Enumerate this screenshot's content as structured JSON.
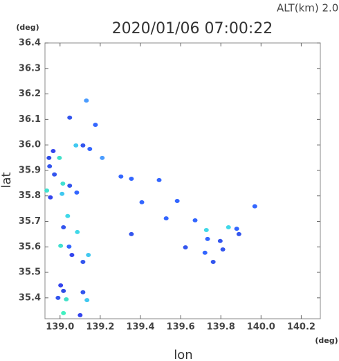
{
  "chart_data": {
    "type": "scatter",
    "header": "ALT(km) 2.0",
    "title": "2020/01/06 07:00:22",
    "y_unit": "(deg)",
    "x_unit": "(deg)",
    "ylabel": "lat",
    "xlabel": "lon",
    "xlim": [
      138.925,
      140.295
    ],
    "ylim": [
      35.318,
      36.4
    ],
    "xticks": [
      {
        "value": 139,
        "label": "139.0"
      },
      139.2,
      139.4,
      139.6,
      139.8,
      {
        "value": 140,
        "label": "140.0"
      },
      140.2
    ],
    "yticks": [
      35.4,
      35.5,
      35.6,
      35.7,
      35.8,
      35.9,
      {
        "value": 36,
        "label": "36.0"
      },
      36.1,
      36.2,
      36.3,
      36.4
    ],
    "x": [
      139.131,
      139.048,
      139.176,
      138.966,
      138.945,
      138.948,
      138.997,
      139.079,
      139.114,
      139.148,
      139.21,
      138.972,
      139.014,
      139.048,
      139.083,
      138.952,
      139.01,
      138.934,
      139.038,
      139.017,
      139.003,
      139.045,
      139.059,
      139.086,
      139.141,
      139.114,
      139.003,
      139.017,
      138.99,
      139.031,
      139.134,
      139.017,
      139.1,
      139.114,
      139.303,
      139.355,
      139.493,
      139.583,
      139.355,
      139.528,
      139.624,
      139.672,
      139.734,
      139.728,
      139.797,
      139.838,
      139.89,
      139.879,
      139.81,
      139.762,
      139.721,
      139.969,
      139.407
    ],
    "y": [
      36.174,
      36.107,
      36.079,
      35.976,
      35.949,
      35.916,
      35.949,
      35.998,
      35.998,
      35.984,
      35.949,
      35.884,
      35.848,
      35.84,
      35.813,
      35.794,
      35.808,
      35.821,
      35.721,
      35.677,
      35.604,
      35.601,
      35.568,
      35.658,
      35.568,
      35.541,
      35.449,
      35.427,
      35.4,
      35.394,
      35.391,
      35.34,
      35.332,
      35.422,
      35.876,
      35.867,
      35.862,
      35.78,
      35.65,
      35.712,
      35.598,
      35.704,
      35.631,
      35.666,
      35.623,
      35.677,
      35.65,
      35.671,
      35.59,
      35.541,
      35.577,
      35.759,
      35.775
    ],
    "colors": [
      "#4a9cff",
      "#3355ee",
      "#3366ff",
      "#3344ee",
      "#2d4be6",
      "#3355ee",
      "#40e0c8",
      "#40c8f0",
      "#3355ee",
      "#3366ff",
      "#4a9cff",
      "#3355ee",
      "#40e0d0",
      "#3355ee",
      "#3366ff",
      "#3344ee",
      "#40c8f0",
      "#40e0d0",
      "#40d8e8",
      "#3355ee",
      "#40e0d0",
      "#3366ff",
      "#3344ee",
      "#40d8e8",
      "#40c8f0",
      "#3355ee",
      "#3344ee",
      "#2d4be6",
      "#3355ee",
      "#40e0c8",
      "#40c8f0",
      "#40f0c0",
      "#3344ee",
      "#3355ee",
      "#3366ff",
      "#3366ff",
      "#3366ff",
      "#3366ff",
      "#3355ee",
      "#3366ff",
      "#3355ee",
      "#3366ff",
      "#3366ff",
      "#40d8e8",
      "#3355ee",
      "#40d8e8",
      "#3355ee",
      "#3366ff",
      "#3355ee",
      "#3355ee",
      "#3366ff",
      "#3366ff",
      "#3366ff"
    ]
  }
}
